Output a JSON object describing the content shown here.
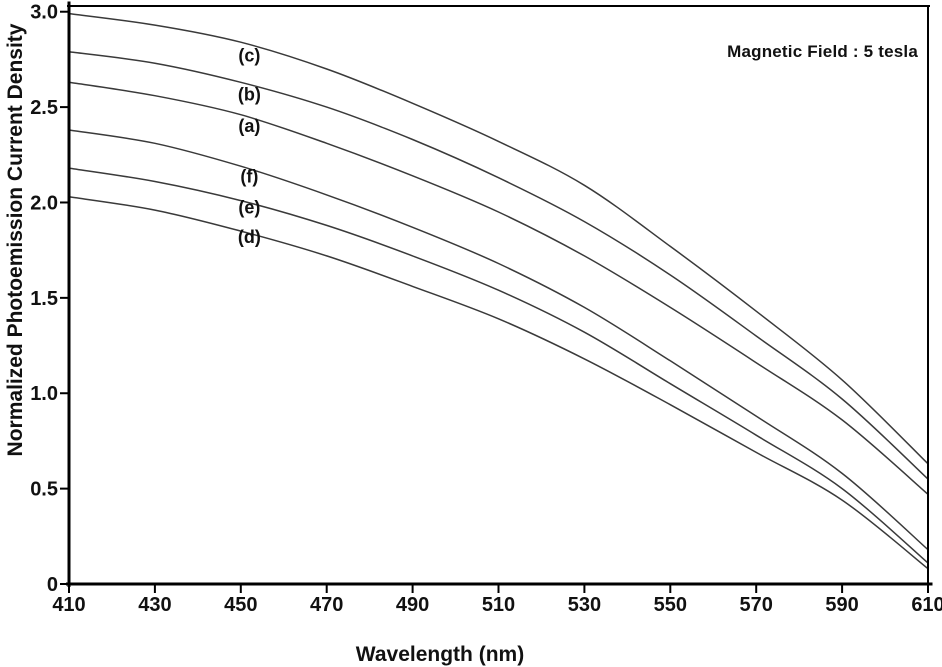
{
  "figure": {
    "background": "#ffffff",
    "axis_color": "#000000",
    "line_color": "#3a3a3a"
  },
  "chart_data": {
    "type": "line",
    "title": "",
    "xlabel": "Wavelength (nm)",
    "ylabel": "Normalized Photoemission Current Density",
    "annotation": "Magnetic Field : 5 tesla",
    "xlim": [
      410,
      610
    ],
    "ylim": [
      0,
      3.03
    ],
    "grid": false,
    "legend_position": "inline-curve-labels",
    "x_ticks": [
      410,
      430,
      450,
      470,
      490,
      510,
      530,
      550,
      570,
      590,
      610
    ],
    "y_ticks": [
      0,
      0.5,
      1.0,
      1.5,
      2.0,
      2.5,
      3.0
    ],
    "y_tick_labels": [
      "0",
      "0.5",
      "1.0",
      "1.5",
      "2.0",
      "2.5",
      "3.0"
    ],
    "x": [
      410,
      430,
      450,
      470,
      490,
      510,
      530,
      550,
      570,
      590,
      610
    ],
    "series": [
      {
        "name": "(c)",
        "values": [
          2.99,
          2.93,
          2.84,
          2.7,
          2.52,
          2.32,
          2.09,
          1.77,
          1.43,
          1.07,
          0.63
        ]
      },
      {
        "name": "(b)",
        "values": [
          2.79,
          2.73,
          2.63,
          2.5,
          2.33,
          2.13,
          1.9,
          1.62,
          1.3,
          0.97,
          0.55
        ]
      },
      {
        "name": "(a)",
        "values": [
          2.63,
          2.56,
          2.46,
          2.31,
          2.14,
          1.95,
          1.72,
          1.45,
          1.16,
          0.86,
          0.47
        ]
      },
      {
        "name": "(f)",
        "values": [
          2.38,
          2.31,
          2.19,
          2.04,
          1.87,
          1.68,
          1.45,
          1.17,
          0.88,
          0.58,
          0.18
        ]
      },
      {
        "name": "(e)",
        "values": [
          2.18,
          2.11,
          2.01,
          1.88,
          1.72,
          1.54,
          1.32,
          1.05,
          0.78,
          0.5,
          0.11
        ]
      },
      {
        "name": "(d)",
        "values": [
          2.03,
          1.96,
          1.85,
          1.72,
          1.56,
          1.39,
          1.18,
          0.94,
          0.69,
          0.44,
          0.08
        ]
      }
    ],
    "curve_labels": [
      {
        "text": "(c)",
        "x": 452,
        "y": 2.77
      },
      {
        "text": "(b)",
        "x": 452,
        "y": 2.565
      },
      {
        "text": "(a)",
        "x": 452,
        "y": 2.4
      },
      {
        "text": "(f)",
        "x": 452,
        "y": 2.135
      },
      {
        "text": "(e)",
        "x": 452,
        "y": 1.975
      },
      {
        "text": "(d)",
        "x": 452,
        "y": 1.82
      }
    ]
  }
}
